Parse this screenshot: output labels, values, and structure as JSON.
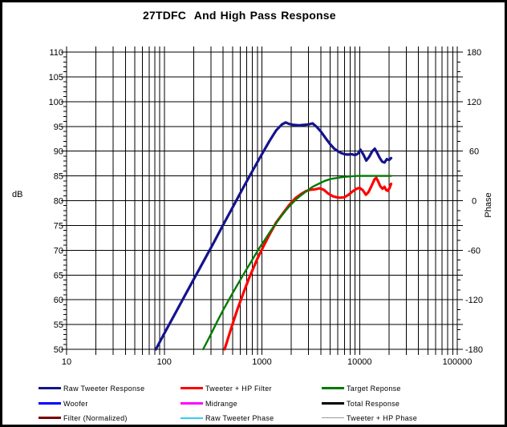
{
  "title": "27TDFC  And High Pass Response",
  "axes": {
    "x": {
      "scale": "log",
      "min": 10,
      "max": 100000,
      "tick_labels": [
        "10",
        "100",
        "1000",
        "10000",
        "100000"
      ]
    },
    "y_left": {
      "label": "dB",
      "min": 50,
      "max": 110,
      "major_step": 5,
      "minor_step": 1,
      "tick_labels": [
        "110",
        "105",
        "100",
        "95",
        "90",
        "85",
        "80",
        "75",
        "70",
        "65",
        "60",
        "55",
        "50"
      ]
    },
    "y_right": {
      "label": "Phase",
      "min": -180,
      "max": 180,
      "major_step": 60,
      "minor_step": 12,
      "tick_labels": [
        "180",
        "120",
        "60",
        "0",
        "-60",
        "-120",
        "-180"
      ]
    }
  },
  "legend": [
    {
      "label": "Raw Tweeter Response",
      "color": "#14148C",
      "weight": 3
    },
    {
      "label": "Tweeter + HP Filter",
      "color": "#FF0000",
      "weight": 3
    },
    {
      "label": "Target Reponse",
      "color": "#007A00",
      "weight": 3
    },
    {
      "label": "Woofer",
      "color": "#0000FF",
      "weight": 3
    },
    {
      "label": "Midrange",
      "color": "#FF00FF",
      "weight": 3
    },
    {
      "label": "Total Response",
      "color": "#000000",
      "weight": 3
    },
    {
      "label": "Filter (Normalized)",
      "color": "#7A0000",
      "weight": 3
    },
    {
      "label": "Raw Tweeter Phase",
      "color": "#33CCFF",
      "weight": 2
    },
    {
      "label": "Tweeter + HP Phase",
      "color": "#999999",
      "weight": 1
    }
  ],
  "chart_data": {
    "type": "line",
    "title": "27TDFC  And High Pass Response",
    "x_unit": "Hz",
    "x_scale": "log",
    "xlim": [
      10,
      100000
    ],
    "ylim_db": [
      50,
      110
    ],
    "ylim_phase": [
      -180,
      180
    ],
    "grid": true,
    "legend_position": "bottom",
    "series": [
      {
        "name": "Raw Tweeter Response",
        "color": "#14148C",
        "width": 3.2,
        "points": [
          [
            82,
            50
          ],
          [
            100,
            53.2
          ],
          [
            130,
            57.3
          ],
          [
            160,
            60.6
          ],
          [
            200,
            64.1
          ],
          [
            250,
            67.6
          ],
          [
            320,
            71.5
          ],
          [
            400,
            75.1
          ],
          [
            500,
            78.6
          ],
          [
            630,
            82.3
          ],
          [
            800,
            86.0
          ],
          [
            1000,
            89.4
          ],
          [
            1200,
            92.1
          ],
          [
            1400,
            94.2
          ],
          [
            1600,
            95.4
          ],
          [
            1750,
            95.8
          ],
          [
            1900,
            95.5
          ],
          [
            2100,
            95.3
          ],
          [
            2400,
            95.2
          ],
          [
            2700,
            95.3
          ],
          [
            3000,
            95.4
          ],
          [
            3300,
            95.6
          ],
          [
            3600,
            95.0
          ],
          [
            4000,
            94.0
          ],
          [
            4500,
            92.6
          ],
          [
            5000,
            91.4
          ],
          [
            5500,
            90.5
          ],
          [
            6000,
            90.0
          ],
          [
            6500,
            89.6
          ],
          [
            7000,
            89.4
          ],
          [
            7600,
            89.3
          ],
          [
            8200,
            89.4
          ],
          [
            9000,
            89.2
          ],
          [
            9600,
            89.5
          ],
          [
            10200,
            90.3
          ],
          [
            11000,
            89.2
          ],
          [
            11700,
            88.1
          ],
          [
            12500,
            88.8
          ],
          [
            13500,
            90.0
          ],
          [
            14300,
            90.5
          ],
          [
            15000,
            89.8
          ],
          [
            16000,
            88.7
          ],
          [
            17000,
            87.9
          ],
          [
            18000,
            87.7
          ],
          [
            19000,
            88.4
          ],
          [
            20000,
            88.2
          ],
          [
            21000,
            88.6
          ]
        ]
      },
      {
        "name": "Tweeter + HP Filter",
        "color": "#FF0000",
        "width": 3.2,
        "points": [
          [
            415,
            50
          ],
          [
            480,
            54.0
          ],
          [
            560,
            58.0
          ],
          [
            650,
            61.5
          ],
          [
            750,
            64.7
          ],
          [
            900,
            68.3
          ],
          [
            1050,
            71.0
          ],
          [
            1200,
            73.2
          ],
          [
            1400,
            75.6
          ],
          [
            1650,
            77.5
          ],
          [
            1900,
            79.1
          ],
          [
            2200,
            80.5
          ],
          [
            2500,
            81.3
          ],
          [
            2800,
            81.9
          ],
          [
            3100,
            82.2
          ],
          [
            3500,
            82.3
          ],
          [
            3900,
            82.5
          ],
          [
            4300,
            82.2
          ],
          [
            4800,
            81.4
          ],
          [
            5300,
            80.9
          ],
          [
            5800,
            80.7
          ],
          [
            6300,
            80.6
          ],
          [
            7000,
            80.7
          ],
          [
            7700,
            81.2
          ],
          [
            8500,
            81.9
          ],
          [
            9300,
            82.4
          ],
          [
            10000,
            82.6
          ],
          [
            10800,
            82.1
          ],
          [
            11600,
            81.2
          ],
          [
            12300,
            81.7
          ],
          [
            13200,
            82.9
          ],
          [
            14200,
            84.3
          ],
          [
            14800,
            84.6
          ],
          [
            15500,
            83.9
          ],
          [
            16300,
            82.9
          ],
          [
            17200,
            82.4
          ],
          [
            18000,
            82.8
          ],
          [
            18800,
            82.1
          ],
          [
            19500,
            82.0
          ],
          [
            20300,
            82.6
          ],
          [
            21000,
            83.4
          ]
        ]
      },
      {
        "name": "Target Reponse",
        "color": "#007A00",
        "width": 2.4,
        "points": [
          [
            250,
            50
          ],
          [
            300,
            53.0
          ],
          [
            350,
            55.7
          ],
          [
            400,
            57.9
          ],
          [
            450,
            59.7
          ],
          [
            510,
            61.6
          ],
          [
            580,
            63.5
          ],
          [
            660,
            65.4
          ],
          [
            750,
            67.2
          ],
          [
            850,
            69.0
          ],
          [
            960,
            70.7
          ],
          [
            1080,
            72.2
          ],
          [
            1220,
            73.8
          ],
          [
            1380,
            75.3
          ],
          [
            1550,
            76.7
          ],
          [
            1750,
            78.0
          ],
          [
            1980,
            79.2
          ],
          [
            2250,
            80.3
          ],
          [
            2550,
            81.2
          ],
          [
            2900,
            82.0
          ],
          [
            3300,
            82.8
          ],
          [
            3800,
            83.4
          ],
          [
            4400,
            84.0
          ],
          [
            5100,
            84.4
          ],
          [
            5900,
            84.6
          ],
          [
            6900,
            84.8
          ],
          [
            8000,
            84.9
          ],
          [
            9500,
            85.0
          ],
          [
            11500,
            85.0
          ],
          [
            14000,
            85.0
          ],
          [
            17000,
            85.0
          ],
          [
            21000,
            85.0
          ]
        ]
      }
    ]
  }
}
